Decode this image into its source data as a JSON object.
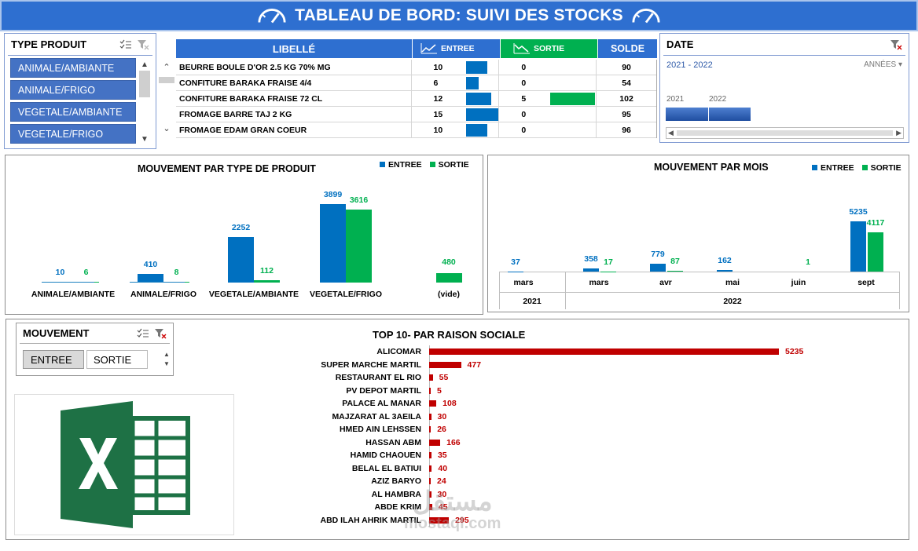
{
  "title": "TABLEAU DE BORD: SUIVI DES STOCKS",
  "colors": {
    "blue": "#0070c0",
    "green": "#00b050",
    "red": "#c00000",
    "header": "#2e6fd0"
  },
  "type_produit": {
    "title": "TYPE PRODUIT",
    "items": [
      "ANIMALE/AMBIANTE",
      "ANIMALE/FRIGO",
      "VEGETALE/AMBIANTE",
      "VEGETALE/FRIGO"
    ]
  },
  "stock_table": {
    "headers": {
      "libelle": "LIBELLÉ",
      "entree": "ENTREE",
      "sortie": "SORTIE",
      "solde": "SOLDE"
    },
    "rows": [
      {
        "libelle": "BEURRE BOULE D'OR 2.5 KG 70% MG",
        "entree": 10,
        "sortie": 0,
        "solde": 90
      },
      {
        "libelle": "CONFITURE BARAKA FRAISE 4/4",
        "entree": 6,
        "sortie": 0,
        "solde": 54
      },
      {
        "libelle": "CONFITURE BARAKA FRAISE 72 CL",
        "entree": 12,
        "sortie": 5,
        "solde": 102
      },
      {
        "libelle": "FROMAGE BARRE TAJ 2 KG",
        "entree": 15,
        "sortie": 0,
        "solde": 95
      },
      {
        "libelle": "FROMAGE EDAM GRAN COEUR",
        "entree": 10,
        "sortie": 0,
        "solde": 96
      }
    ]
  },
  "date_slicer": {
    "title": "DATE",
    "range": "2021 - 2022",
    "level": "ANNÉES",
    "years": [
      "2021",
      "2022"
    ]
  },
  "chart_data": [
    {
      "type": "bar",
      "title": "MOUVEMENT PAR TYPE DE PRODUIT",
      "categories": [
        "ANIMALE/AMBIANTE",
        "ANIMALE/FRIGO",
        "VEGETALE/AMBIANTE",
        "VEGETALE/FRIGO",
        "(vide)"
      ],
      "series": [
        {
          "name": "ENTREE",
          "values": [
            10,
            410,
            2252,
            3899,
            null
          ]
        },
        {
          "name": "SORTIE",
          "values": [
            6,
            8,
            112,
            3616,
            480
          ]
        }
      ]
    },
    {
      "type": "bar",
      "title": "MOUVEMENT PAR MOIS",
      "categories": [
        "mars",
        "mars",
        "avr",
        "mai",
        "juin",
        "sept"
      ],
      "groups": [
        {
          "label": "2021",
          "span": 1
        },
        {
          "label": "2022",
          "span": 5
        }
      ],
      "series": [
        {
          "name": "ENTREE",
          "values": [
            37,
            358,
            779,
            162,
            null,
            5235
          ]
        },
        {
          "name": "SORTIE",
          "values": [
            null,
            17,
            87,
            null,
            1,
            4117
          ]
        }
      ]
    },
    {
      "type": "bar",
      "orientation": "horizontal",
      "title": "TOP 10-  PAR RAISON SOCIALE",
      "categories": [
        "ALICOMAR",
        "SUPER MARCHE MARTIL",
        "RESTAURANT EL RIO",
        "PV DEPOT MARTIL",
        "PALACE AL MANAR",
        "MAJZARAT AL 3AEILA",
        "HMED AIN LEHSSEN",
        "HASSAN ABM",
        "HAMID CHAOUEN",
        "BELAL EL BATIUI",
        "AZIZ BARYO",
        "AL HAMBRA",
        "ABDE KRIM",
        "ABD ILAH AHRIK MARTIL"
      ],
      "values": [
        5235,
        477,
        55,
        5,
        108,
        30,
        26,
        166,
        35,
        40,
        24,
        30,
        45,
        295
      ]
    }
  ],
  "mouvement_slicer": {
    "title": "MOUVEMENT",
    "items": [
      "ENTREE",
      "SORTIE"
    ]
  },
  "watermark": {
    "text1": "مستقل",
    "text2": "mostaql.com"
  }
}
